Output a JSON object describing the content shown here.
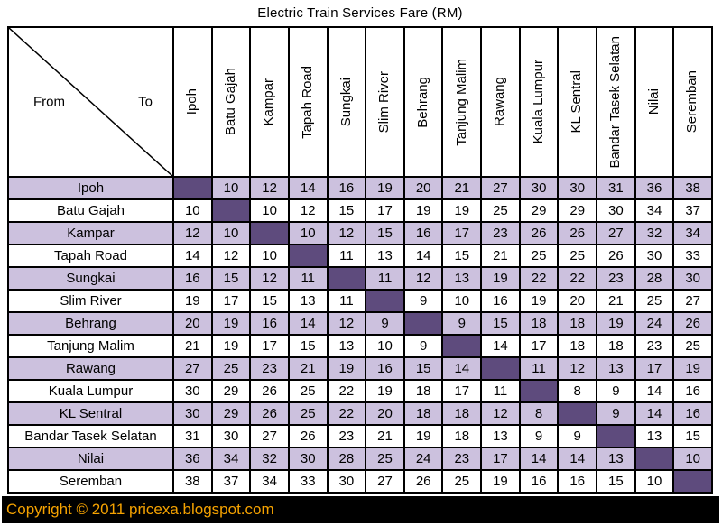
{
  "corner": {
    "from_label": "From",
    "to_label": "To"
  },
  "footer": {
    "copyright": "Copyright © 2011 pricexa.blogspot.com"
  },
  "colors": {
    "row_alt_bg": "#CCC1DE",
    "diagonal_bg": "#5E4B7D",
    "border": "#000000",
    "header_bg": "#FFFFFF",
    "footer_bg": "#000000",
    "footer_text": "#F5A200"
  },
  "chart_data": {
    "type": "table",
    "title": "Electric Train Services Fare (RM)",
    "row_axis_label": "From",
    "col_axis_label": "To",
    "stations": [
      "Ipoh",
      "Batu Gajah",
      "Kampar",
      "Tapah Road",
      "Sungkai",
      "Slim River",
      "Behrang",
      "Tanjung Malim",
      "Rawang",
      "Kuala Lumpur",
      "KL Sentral",
      "Bandar Tasek Selatan",
      "Nilai",
      "Seremban"
    ],
    "fares": [
      [
        null,
        10,
        12,
        14,
        16,
        19,
        20,
        21,
        27,
        30,
        30,
        31,
        36,
        38
      ],
      [
        10,
        null,
        10,
        12,
        15,
        17,
        19,
        19,
        25,
        29,
        29,
        30,
        34,
        37
      ],
      [
        12,
        10,
        null,
        10,
        12,
        15,
        16,
        17,
        23,
        26,
        26,
        27,
        32,
        34
      ],
      [
        14,
        12,
        10,
        null,
        11,
        13,
        14,
        15,
        21,
        25,
        25,
        26,
        30,
        33
      ],
      [
        16,
        15,
        12,
        11,
        null,
        11,
        12,
        13,
        19,
        22,
        22,
        23,
        28,
        30
      ],
      [
        19,
        17,
        15,
        13,
        11,
        null,
        9,
        10,
        16,
        19,
        20,
        21,
        25,
        27
      ],
      [
        20,
        19,
        16,
        14,
        12,
        9,
        null,
        9,
        15,
        18,
        18,
        19,
        24,
        26
      ],
      [
        21,
        19,
        17,
        15,
        13,
        10,
        9,
        null,
        14,
        17,
        18,
        18,
        23,
        25
      ],
      [
        27,
        25,
        23,
        21,
        19,
        16,
        15,
        14,
        null,
        11,
        12,
        13,
        17,
        19
      ],
      [
        30,
        29,
        26,
        25,
        22,
        19,
        18,
        17,
        11,
        null,
        8,
        9,
        14,
        16
      ],
      [
        30,
        29,
        26,
        25,
        22,
        20,
        18,
        18,
        12,
        8,
        null,
        9,
        14,
        16
      ],
      [
        31,
        30,
        27,
        26,
        23,
        21,
        19,
        18,
        13,
        9,
        9,
        null,
        13,
        15
      ],
      [
        36,
        34,
        32,
        30,
        28,
        25,
        24,
        23,
        17,
        14,
        14,
        13,
        null,
        10
      ],
      [
        38,
        37,
        34,
        33,
        30,
        27,
        26,
        25,
        19,
        16,
        16,
        15,
        10,
        null
      ]
    ]
  }
}
